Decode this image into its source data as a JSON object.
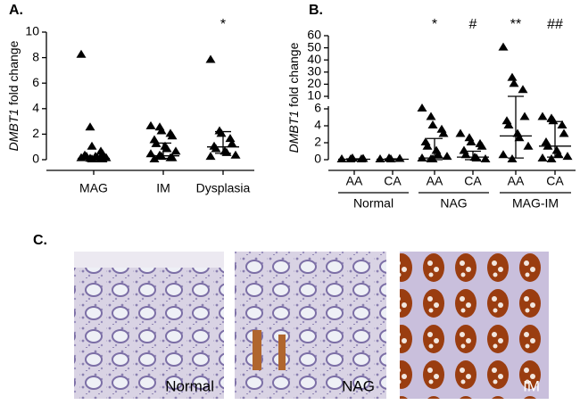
{
  "chart_data": [
    {
      "type": "scatter",
      "panel_label": "A.",
      "ylabel_italic": "DMBT1",
      "ylabel": "fold change",
      "categories": [
        "MAG",
        "IM",
        "Dysplasia"
      ],
      "points": [
        [
          8.2,
          2.5,
          1.0,
          0.6,
          0.4,
          0.3,
          0.2,
          0.2,
          0.1,
          0.1,
          0.1,
          0.05,
          0,
          0,
          0
        ],
        [
          2.6,
          2.5,
          2.2,
          2.0,
          1.8,
          1.5,
          1.2,
          1.0,
          0.8,
          0.6,
          0.4,
          0.3,
          0.2,
          0.1,
          0.1,
          0
        ],
        [
          7.8,
          2.2,
          2.0,
          1.6,
          1.2,
          1.0,
          0.8,
          0.6,
          0.5,
          0.3,
          0.2
        ]
      ],
      "medians": [
        0.1,
        0.3,
        1.0
      ],
      "quartiles": [
        [
          0,
          0.2
        ],
        [
          0.1,
          1.3
        ],
        [
          0.5,
          2.2
        ]
      ],
      "annotations": [
        null,
        null,
        "*"
      ],
      "color": "#000000",
      "ylim": [
        0,
        10
      ],
      "yticks": [
        0,
        2,
        4,
        6,
        8,
        10
      ]
    },
    {
      "type": "scatter",
      "panel_label": "B.",
      "ylabel_italic": "DMBT1",
      "ylabel": "fold change",
      "categories": [
        "AA",
        "CA",
        "AA",
        "CA",
        "AA",
        "CA"
      ],
      "groups": [
        "Normal",
        "NAG",
        "MAG-IM"
      ],
      "points": [
        [
          0,
          0,
          0.1,
          0,
          0.05
        ],
        [
          0,
          0.1,
          0,
          0.05
        ],
        [
          6,
          5,
          4,
          3.5,
          3,
          2,
          1.5,
          1,
          0.5,
          0.3,
          0.1,
          0,
          0
        ],
        [
          3,
          2.5,
          2,
          1.8,
          1.5,
          1,
          0.5,
          0.2,
          0.1,
          0
        ],
        [
          50,
          25,
          20,
          15,
          5,
          4.5,
          4,
          3,
          2.5,
          1.5,
          0.5,
          0
        ],
        [
          5,
          4.8,
          4.5,
          4,
          3,
          2,
          1.5,
          1,
          0.5,
          0.3,
          0.1,
          0
        ]
      ],
      "medians": [
        0.05,
        0.05,
        0.2,
        0.3,
        2.8,
        1.6
      ],
      "quartiles": [
        [
          0,
          0.1
        ],
        [
          0,
          0.1
        ],
        [
          0,
          2.5
        ],
        [
          0,
          1
        ],
        [
          0.2,
          10
        ],
        [
          0.3,
          4.5
        ]
      ],
      "annotations": [
        null,
        null,
        "*",
        "#",
        "**",
        "##"
      ],
      "color": "#000000",
      "ylim": [
        0,
        60
      ],
      "y_break": [
        6,
        10
      ],
      "yticks": [
        0,
        2,
        4,
        6,
        10,
        20,
        30,
        40,
        50,
        60
      ]
    }
  ],
  "panel_c": {
    "label": "C.",
    "images": [
      {
        "label": "Normal"
      },
      {
        "label": "NAG"
      },
      {
        "label": "IM"
      }
    ]
  }
}
